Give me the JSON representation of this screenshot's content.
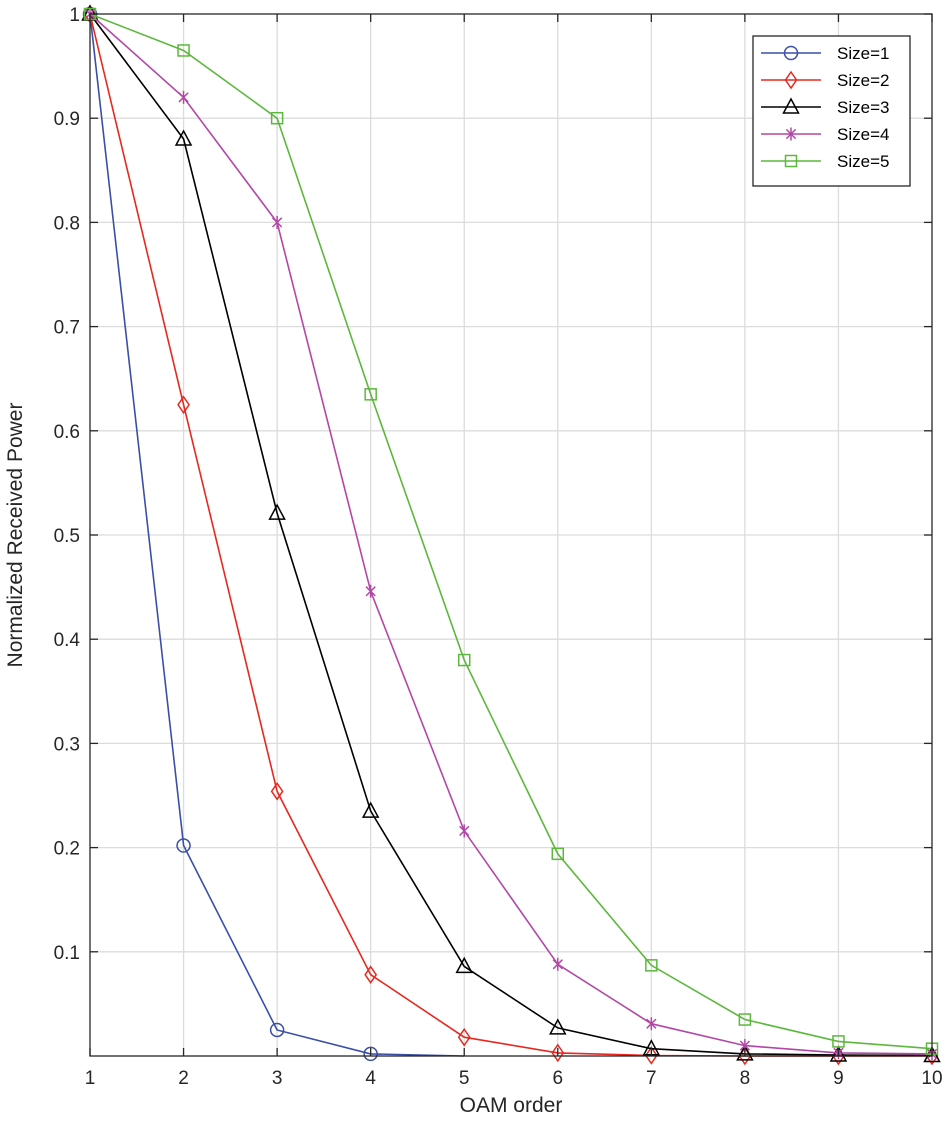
{
  "chart_data": {
    "type": "line",
    "title": "",
    "xlabel": "OAM order",
    "ylabel": "Normalized Received Power",
    "xlim": [
      1,
      10
    ],
    "ylim": [
      0,
      1
    ],
    "grid": true,
    "legend_position": "top-right",
    "x": [
      1,
      2,
      3,
      4,
      5,
      6,
      7,
      8,
      9,
      10
    ],
    "x_ticks": [
      "1",
      "2",
      "3",
      "4",
      "5",
      "6",
      "7",
      "8",
      "9",
      "10"
    ],
    "y_ticks": [
      {
        "value": 0.1,
        "label": "0.1"
      },
      {
        "value": 0.2,
        "label": "0.2"
      },
      {
        "value": 0.3,
        "label": "0.3"
      },
      {
        "value": 0.4,
        "label": "0.4"
      },
      {
        "value": 0.5,
        "label": "0.5"
      },
      {
        "value": 0.6,
        "label": "0.6"
      },
      {
        "value": 0.7,
        "label": "0.7"
      },
      {
        "value": 0.8,
        "label": "0.8"
      },
      {
        "value": 0.9,
        "label": "0.9"
      },
      {
        "value": 1.0,
        "label": "1"
      }
    ],
    "series": [
      {
        "name": "Size=1",
        "color": "#3a4fa6",
        "marker": "circle",
        "values": [
          1.0,
          0.202,
          0.025,
          0.002,
          0.0,
          null,
          null,
          null,
          null,
          null
        ]
      },
      {
        "name": "Size=2",
        "color": "#e8281f",
        "marker": "diamond",
        "values": [
          1.0,
          0.625,
          0.254,
          0.078,
          0.018,
          0.003,
          0.0005,
          0.0,
          0.0,
          0.0
        ]
      },
      {
        "name": "Size=3",
        "color": "#000000",
        "marker": "triangle",
        "values": [
          1.0,
          0.88,
          0.521,
          0.235,
          0.086,
          0.027,
          0.007,
          0.002,
          0.001,
          0.0005
        ]
      },
      {
        "name": "Size=4",
        "color": "#b347a6",
        "marker": "asterisk",
        "values": [
          1.0,
          0.92,
          0.8,
          0.446,
          0.216,
          0.088,
          0.031,
          0.01,
          0.003,
          0.002
        ]
      },
      {
        "name": "Size=5",
        "color": "#5cb83c",
        "marker": "square",
        "values": [
          1.0,
          0.965,
          0.9,
          0.635,
          0.38,
          0.194,
          0.087,
          0.035,
          0.014,
          0.007
        ]
      }
    ]
  }
}
